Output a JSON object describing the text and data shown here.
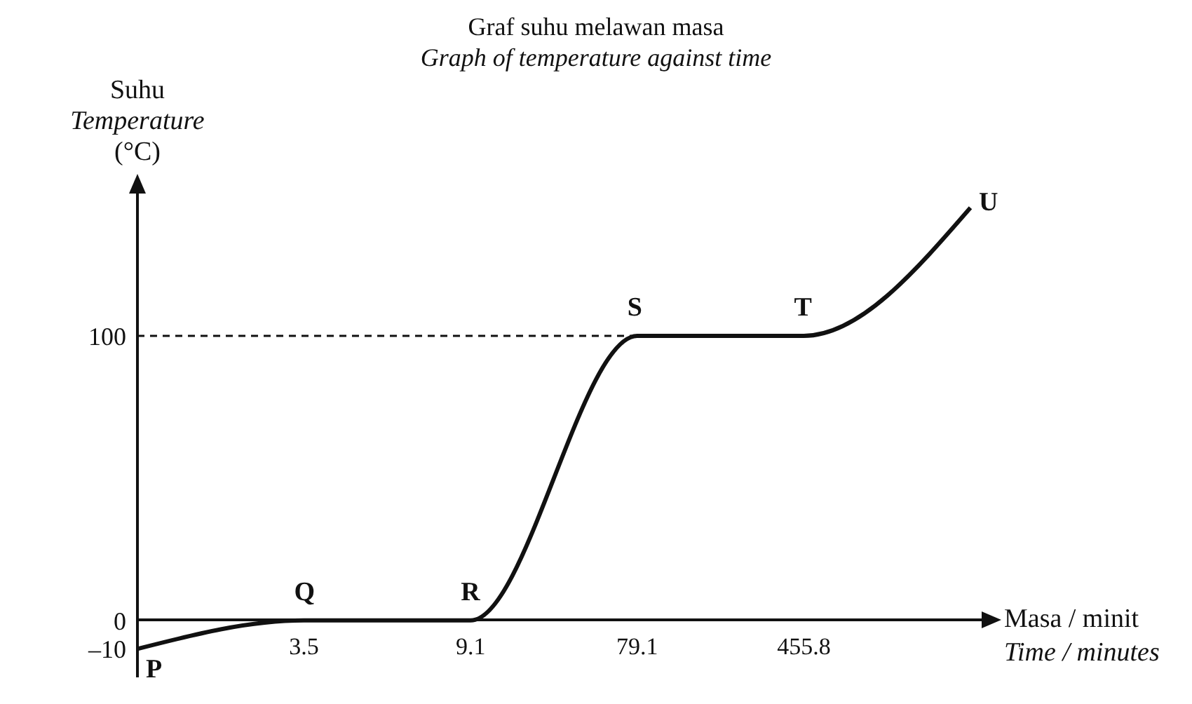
{
  "chart_data": {
    "type": "line",
    "title": "Graf suhu melawan masa",
    "subtitle": "Graph of temperature against time",
    "xlabel": "Masa / minit\nTime / minutes",
    "ylabel": "Suhu\nTemperature\n(°C)",
    "categories": [
      null,
      "3.5",
      "9.1",
      "79.1",
      "455.8",
      null
    ],
    "series": [
      {
        "color": "#111111",
        "values": [
          -10,
          0,
          0,
          100,
          100,
          145
        ]
      }
    ],
    "ylim": [
      -20,
      150
    ],
    "yticks": [
      {
        "value": -10,
        "label": "–10"
      },
      0,
      100
    ],
    "ref_lines": [
      {
        "axis": "y",
        "value": 100,
        "line_style": "dashed",
        "color": "#111111"
      }
    ],
    "annotations": [
      "P",
      "Q",
      "R",
      "S",
      "T",
      "U"
    ],
    "grid": false,
    "marker": "none",
    "line_style": "solid"
  }
}
